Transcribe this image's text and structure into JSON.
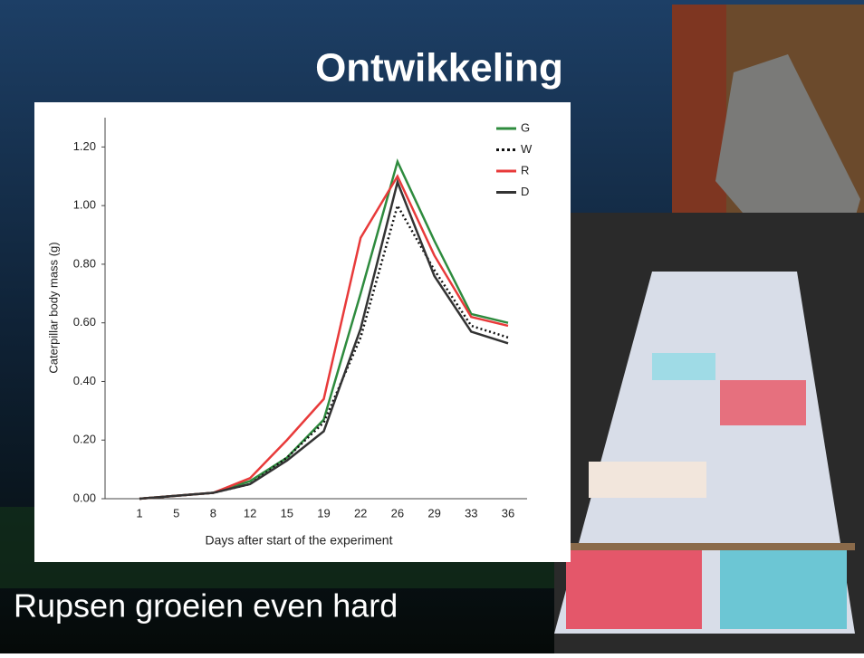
{
  "title": "Ontwikkeling",
  "caption": "Rupsen groeien even hard",
  "chart_data": {
    "type": "line",
    "categories": [
      "1",
      "5",
      "8",
      "12",
      "15",
      "19",
      "22",
      "26",
      "29",
      "33",
      "36"
    ],
    "x_label": "Days after start of the experiment",
    "y_label": "Caterpillar body mass (g)",
    "ylim": [
      0,
      1.3
    ],
    "yticks": [
      {
        "value": 0,
        "label": "0.00"
      },
      {
        "value": 0.2,
        "label": "0.20"
      },
      {
        "value": 0.4,
        "label": "0.40"
      },
      {
        "value": 0.6,
        "label": "0.60"
      },
      {
        "value": 0.8,
        "label": "0.80"
      },
      {
        "value": 1.0,
        "label": "1.00"
      },
      {
        "value": 1.2,
        "label": "1.20"
      }
    ],
    "legend": "top-right",
    "series": [
      {
        "name": "G",
        "color": "#2e8b3e",
        "style": "solid",
        "values": [
          0,
          0.01,
          0.02,
          0.06,
          0.14,
          0.27,
          0.7,
          1.15,
          0.88,
          0.63,
          0.6
        ]
      },
      {
        "name": "W",
        "color": "#111111",
        "style": "dotted",
        "values": [
          0,
          0.01,
          0.02,
          0.05,
          0.14,
          0.26,
          0.55,
          1.0,
          0.78,
          0.59,
          0.55
        ]
      },
      {
        "name": "R",
        "color": "#e83a3a",
        "style": "solid",
        "values": [
          0,
          0.01,
          0.02,
          0.07,
          0.2,
          0.34,
          0.89,
          1.1,
          0.83,
          0.62,
          0.59
        ]
      },
      {
        "name": "D",
        "color": "#333333",
        "style": "solid",
        "values": [
          0,
          0.01,
          0.02,
          0.05,
          0.13,
          0.23,
          0.58,
          1.08,
          0.76,
          0.57,
          0.53
        ]
      }
    ]
  }
}
